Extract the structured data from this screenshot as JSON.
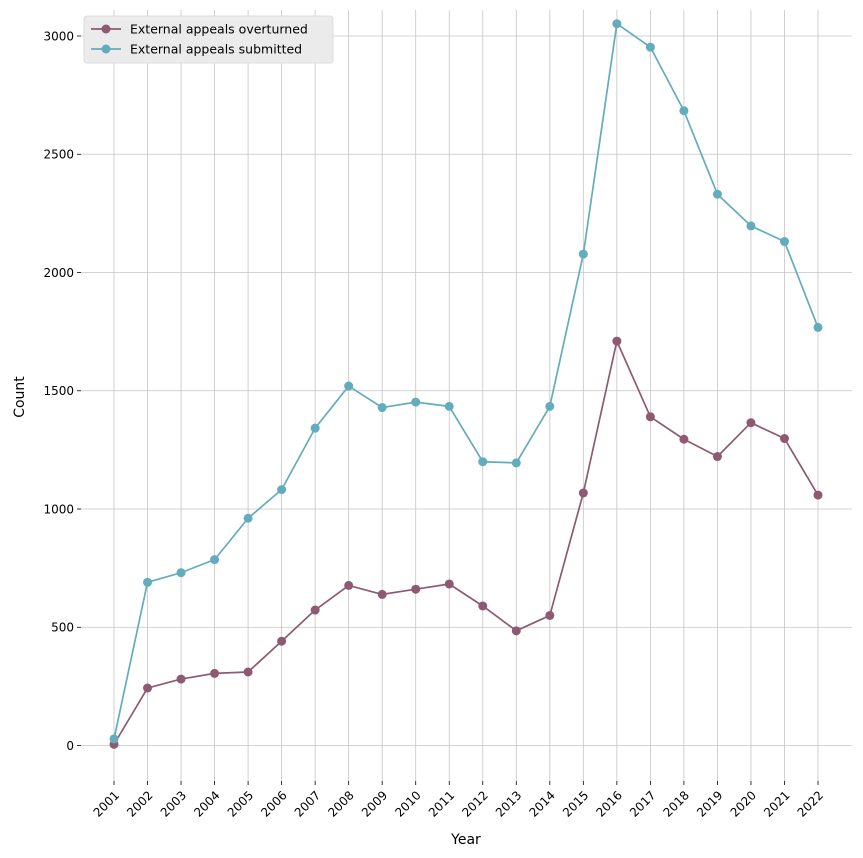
{
  "chart_data": {
    "type": "line",
    "x": [
      "2001",
      "2002",
      "2003",
      "2004",
      "2005",
      "2006",
      "2007",
      "2008",
      "2009",
      "2010",
      "2011",
      "2012",
      "2013",
      "2014",
      "2015",
      "2016",
      "2017",
      "2018",
      "2019",
      "2020",
      "2021",
      "2022"
    ],
    "series": [
      {
        "name": "External appeals overturned",
        "color": "#8e5a72",
        "values": [
          5,
          243,
          281,
          305,
          311,
          441,
          573,
          677,
          639,
          661,
          683,
          590,
          485,
          550,
          1068,
          1710,
          1390,
          1295,
          1222,
          1365,
          1298,
          1059
        ]
      },
      {
        "name": "External appeals submitted",
        "color": "#62acbe",
        "values": [
          28,
          690,
          731,
          786,
          961,
          1082,
          1342,
          1520,
          1429,
          1452,
          1434,
          1200,
          1195,
          1434,
          2078,
          3052,
          2953,
          2684,
          2331,
          2197,
          2131,
          1768
        ]
      }
    ],
    "xlabel": "Year",
    "ylabel": "Count",
    "ylim": [
      -150,
      3110
    ],
    "yticks": [
      0,
      500,
      1000,
      1500,
      2000,
      2500,
      3000
    ],
    "grid": true,
    "legend": "top-left"
  }
}
